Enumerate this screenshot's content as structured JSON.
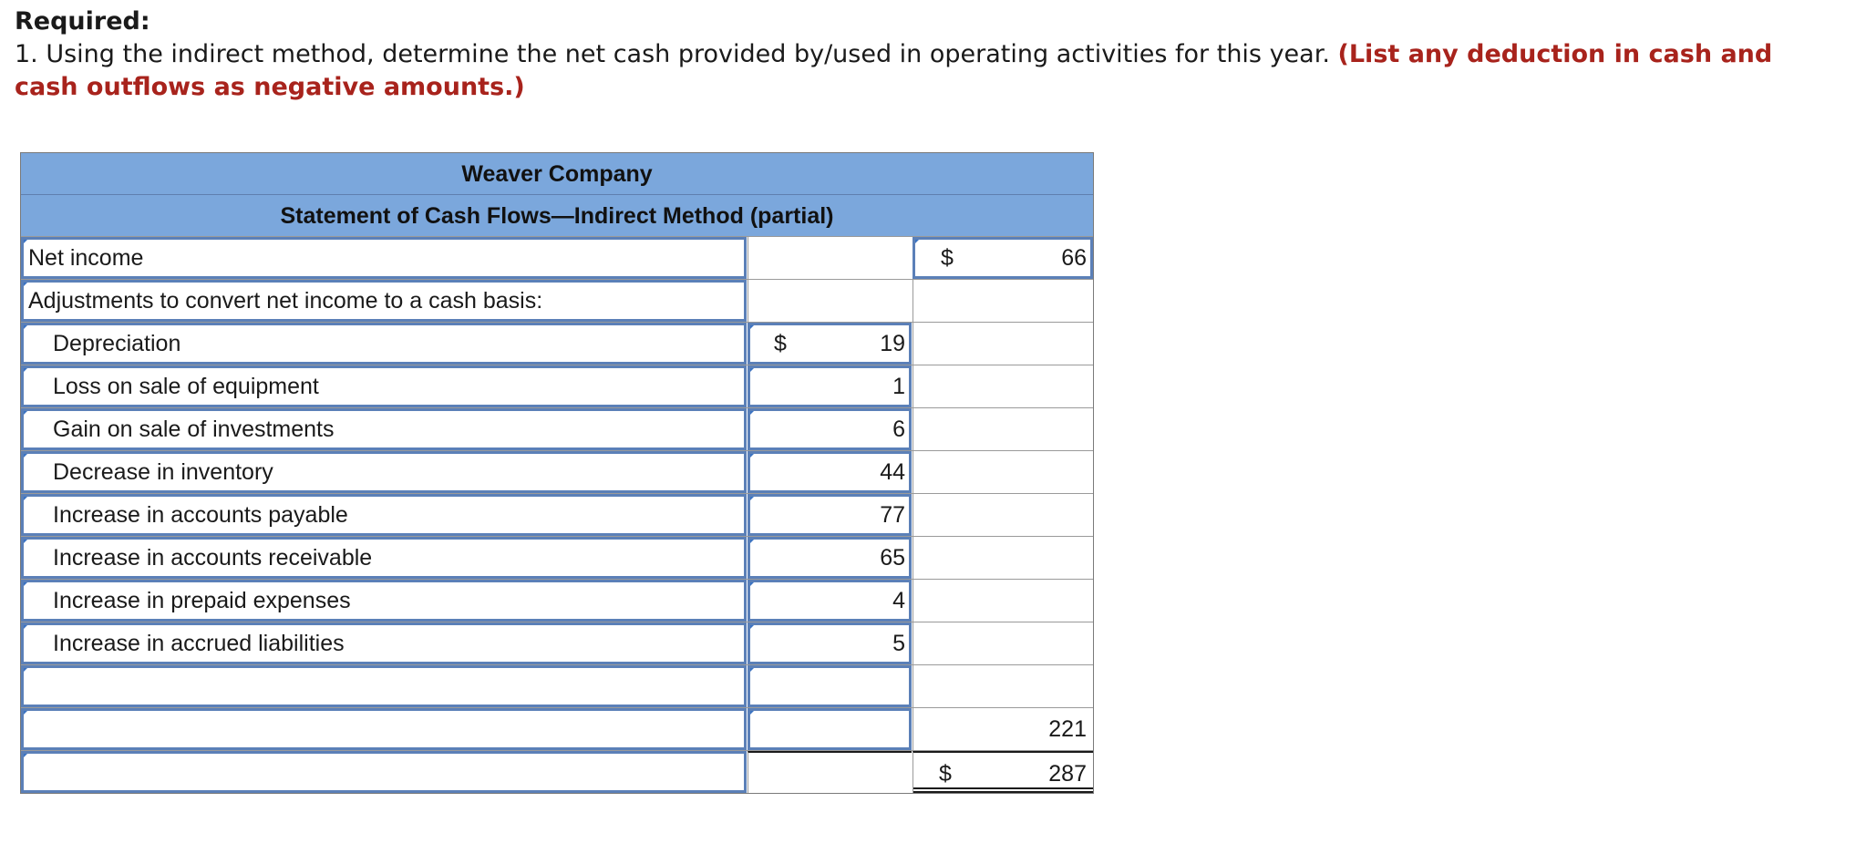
{
  "instructions": {
    "required_label": "Required:",
    "text": "1. Using the indirect method, determine the net cash provided by/used in operating activities for this year.",
    "emphasis": "(List any deduction in cash and cash outflows as negative amounts.)"
  },
  "statement": {
    "company": "Weaver Company",
    "title": "Statement of Cash Flows—Indirect Method (partial)",
    "net_income": {
      "label": "Net income",
      "currency": "$",
      "amount": "66"
    },
    "adjustments_label": "Adjustments to convert net income to a cash basis:",
    "adjustments": [
      {
        "label": "Depreciation",
        "currency": "$",
        "amount": "19"
      },
      {
        "label": "Loss on sale of equipment",
        "currency": "",
        "amount": "1"
      },
      {
        "label": "Gain on sale of investments",
        "currency": "",
        "amount": "6"
      },
      {
        "label": "Decrease in inventory",
        "currency": "",
        "amount": "44"
      },
      {
        "label": "Increase in accounts payable",
        "currency": "",
        "amount": "77"
      },
      {
        "label": "Increase in accounts receivable",
        "currency": "",
        "amount": "65"
      },
      {
        "label": "Increase in prepaid expenses",
        "currency": "",
        "amount": "4"
      },
      {
        "label": "Increase in accrued liabilities",
        "currency": "",
        "amount": "5"
      },
      {
        "label": "",
        "currency": "",
        "amount": ""
      }
    ],
    "total_adjustments": {
      "label": "",
      "amount": "221"
    },
    "net_cash": {
      "label": "",
      "currency": "$",
      "amount": "287"
    }
  },
  "colors": {
    "header_bg": "#7ba7dc",
    "input_border": "#5b80b8",
    "emphasis_red": "#a8231c"
  }
}
